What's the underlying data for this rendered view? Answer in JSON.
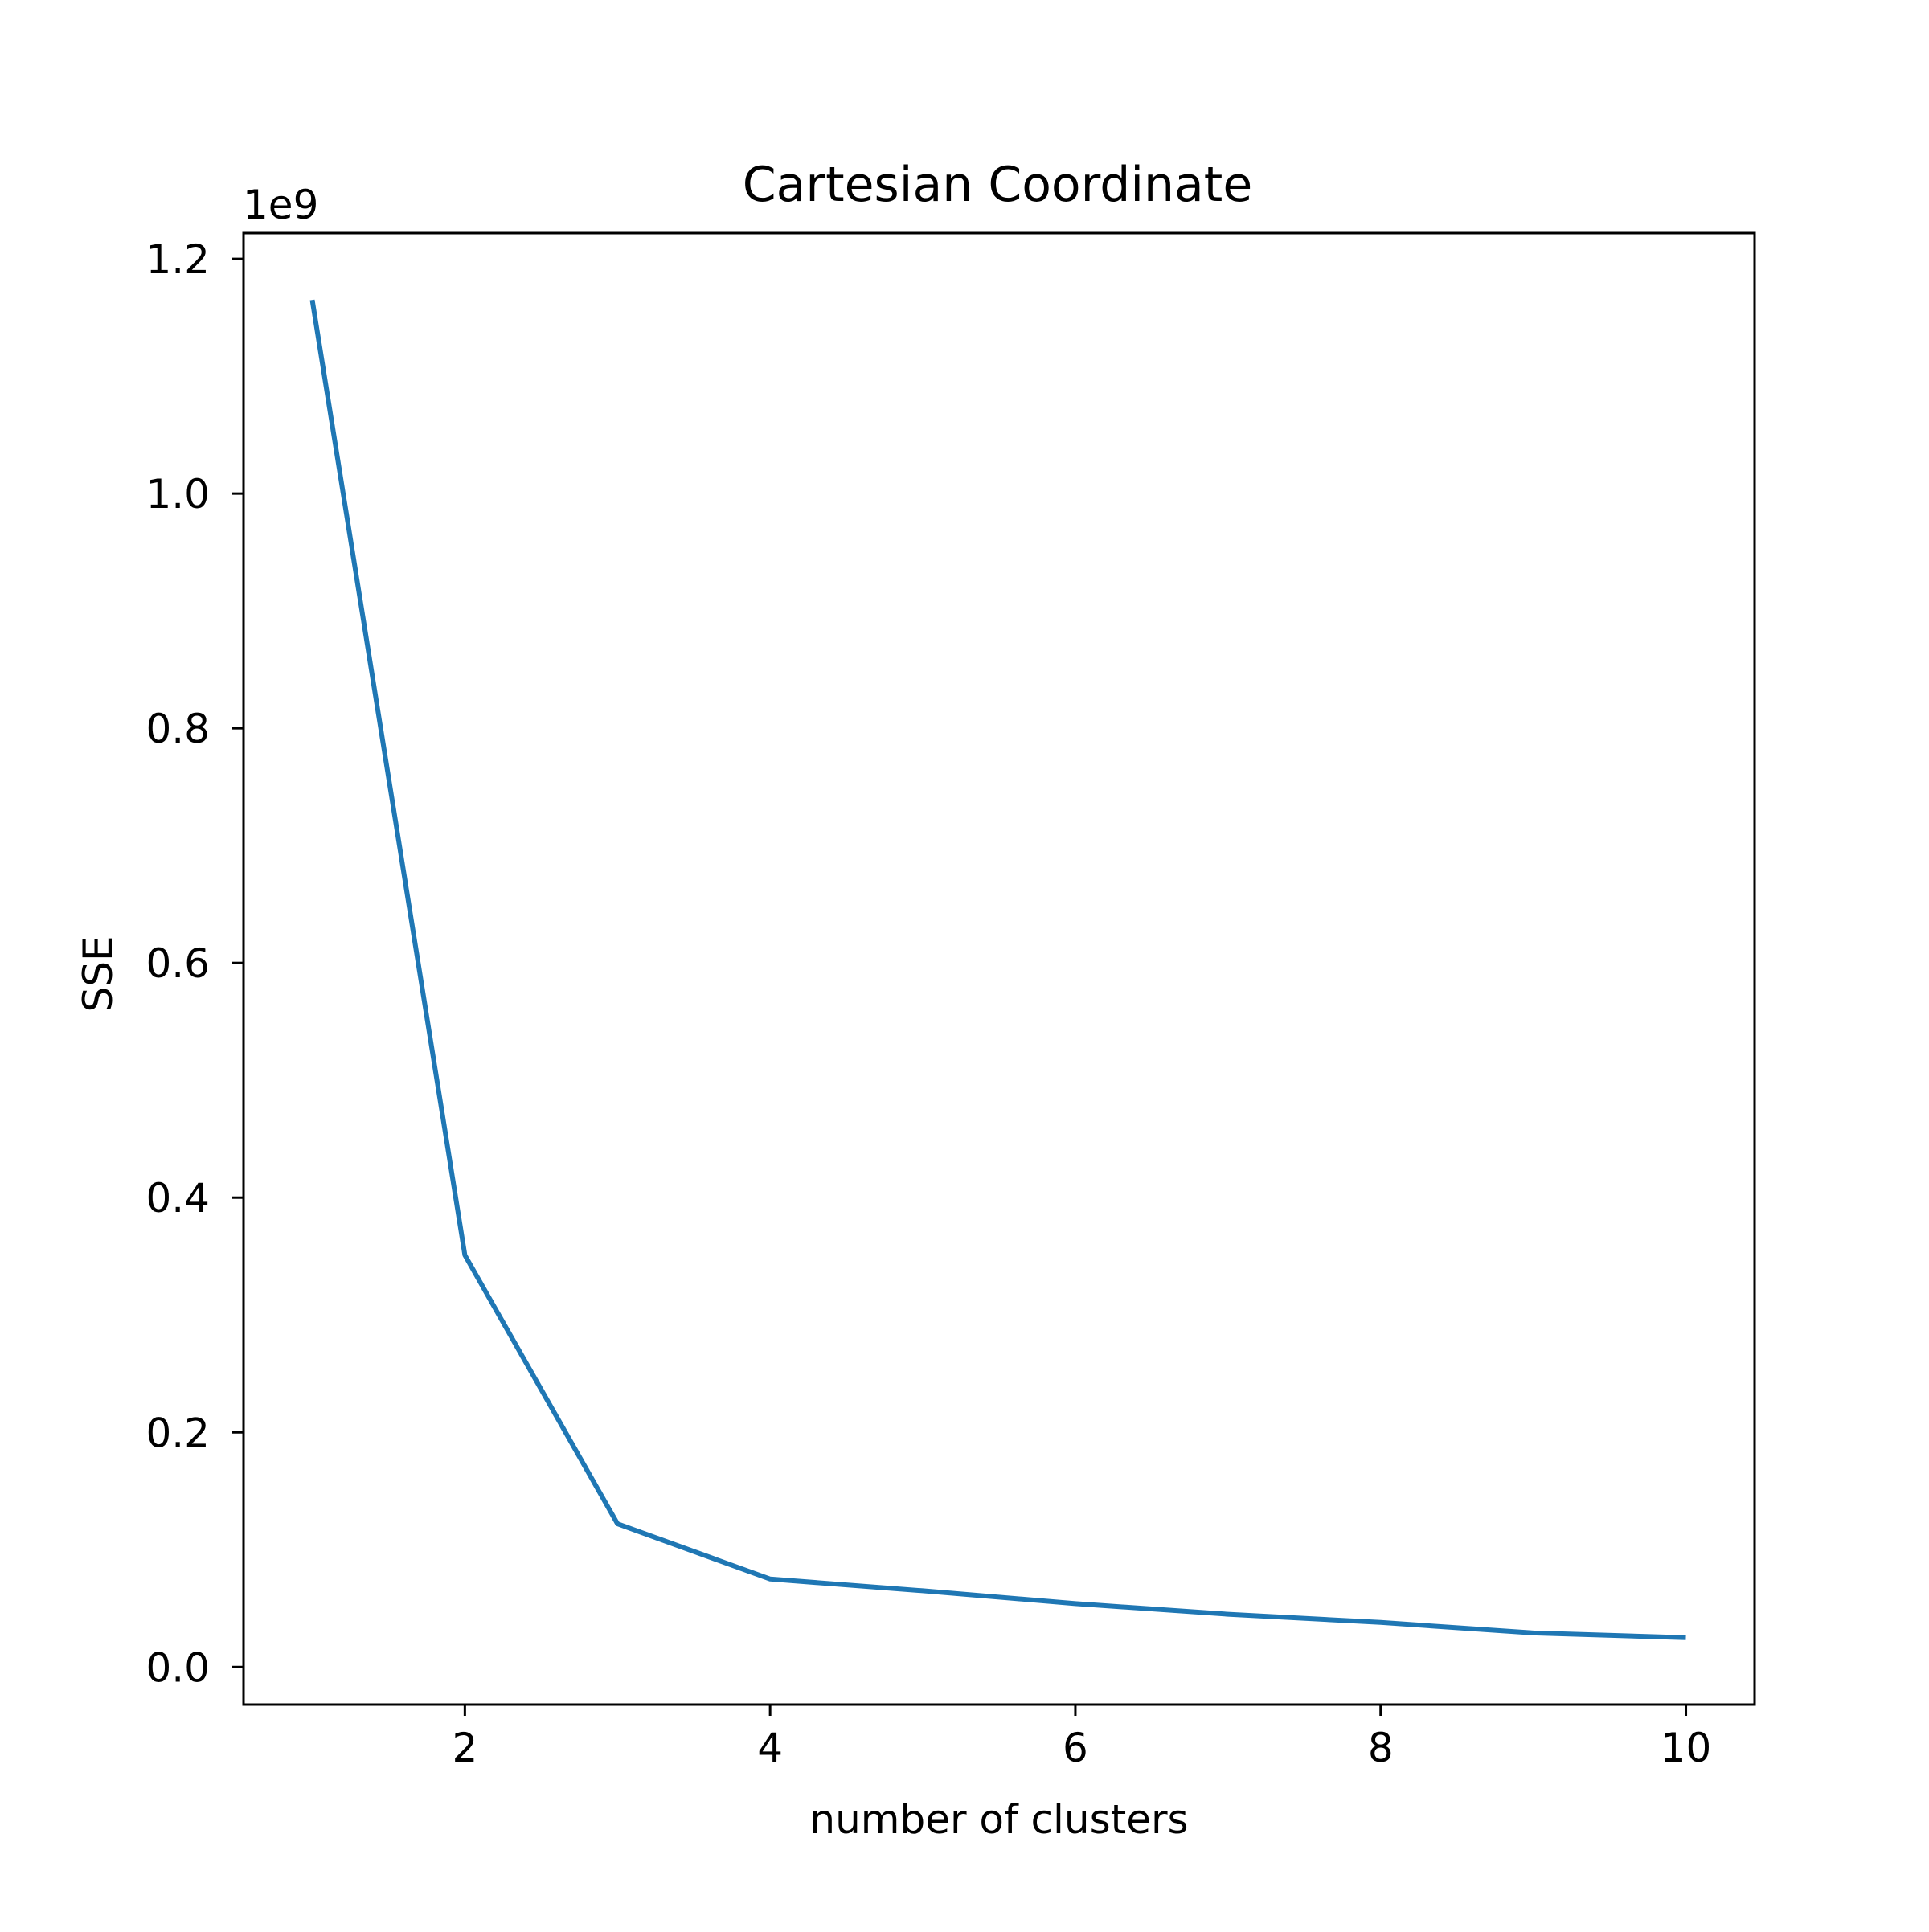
{
  "chart_data": {
    "type": "line",
    "title": "Cartesian Coordinate",
    "xlabel": "number of clusters",
    "ylabel": "SSE",
    "y_offset_label": "1e9",
    "xlim": [
      0.55,
      10.45
    ],
    "ylim": [
      -0.032,
      1.222
    ],
    "y_scale_factor": 1000000000,
    "x_ticks": [
      2,
      4,
      6,
      8,
      10
    ],
    "x_tick_labels": [
      "2",
      "4",
      "6",
      "8",
      "10"
    ],
    "y_ticks": [
      0.0,
      0.2,
      0.4,
      0.6,
      0.8,
      1.0,
      1.2
    ],
    "y_tick_labels": [
      "0.0",
      "0.2",
      "0.4",
      "0.6",
      "0.8",
      "1.0",
      "1.2"
    ],
    "grid": false,
    "series": [
      {
        "x": [
          1,
          2,
          3,
          4,
          5,
          6,
          7,
          8,
          9,
          10
        ],
        "y": [
          1.165,
          0.351,
          0.122,
          0.075,
          0.065,
          0.054,
          0.045,
          0.038,
          0.029,
          0.025
        ],
        "color": "#1f77b4"
      }
    ]
  }
}
